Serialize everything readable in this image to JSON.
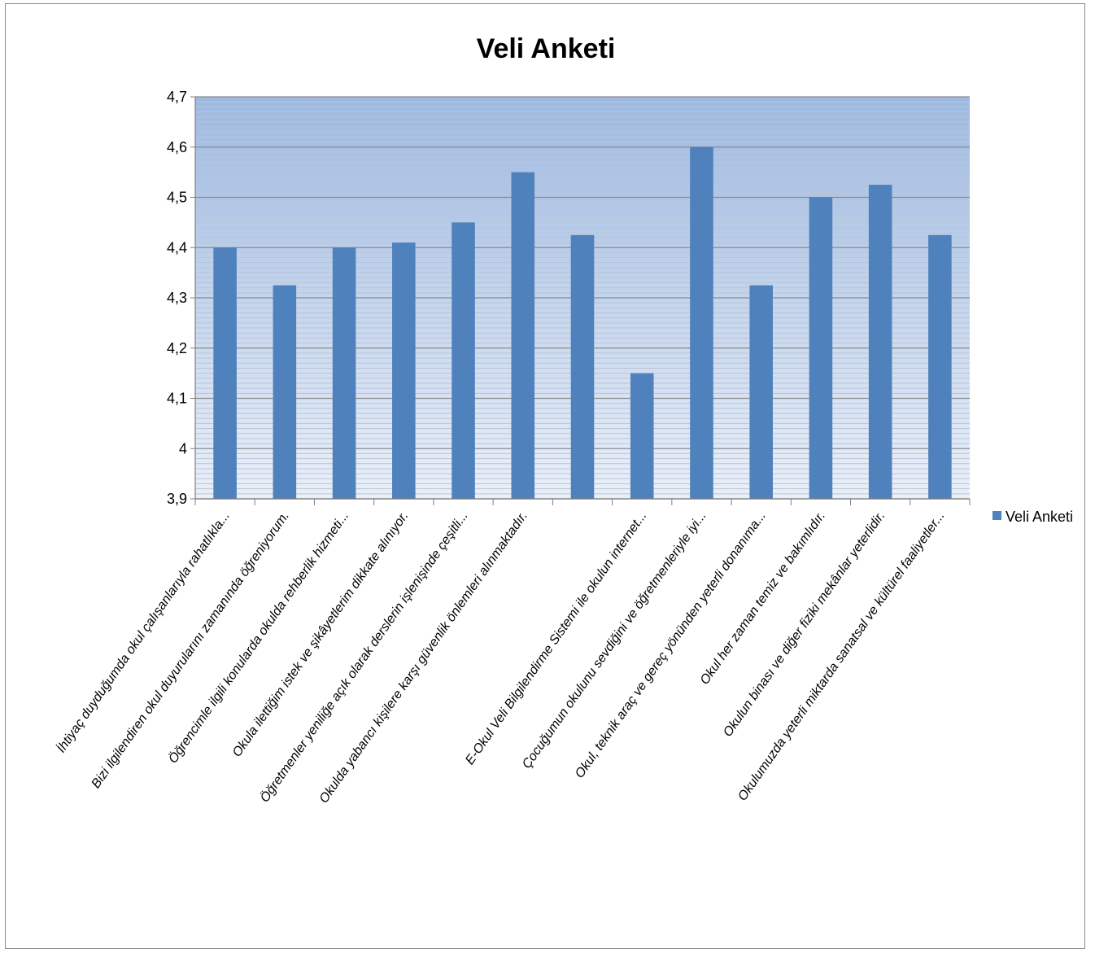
{
  "chart_data": {
    "type": "bar",
    "title": "Veli Anketi",
    "xlabel": "",
    "ylabel": "",
    "ylim": [
      3.9,
      4.7
    ],
    "yticks": [
      3.9,
      4.0,
      4.1,
      4.2,
      4.3,
      4.4,
      4.5,
      4.6,
      4.7
    ],
    "ytick_labels": [
      "3,9",
      "4",
      "4,1",
      "4,2",
      "4,3",
      "4,4",
      "4,5",
      "4,6",
      "4,7"
    ],
    "grid": true,
    "legend_position": "right",
    "colors": {
      "bar": "#4f81bd",
      "plot_bg_top": "#9db9e2",
      "plot_bg_bottom": "#eaf0f9",
      "major_grid": "#8a8a8a",
      "minor_grid": "#b9c5d6"
    },
    "categories": [
      "İhtiyaç duyduğumda okul çalışanlarıyla rahatlıkla...",
      "Bizi ilgilendiren okul duyurularını zamanında öğreniyorum.",
      "Öğrencimle ilgili konularda okulda rehberlik hizmeti...",
      "Okula ilettiğim istek ve şikâyetlerim dikkate alınıyor.",
      "Öğretmenler yeniliğe açık olarak derslerin işlenişinde çeşitli...",
      "Okulda yabancı kişilere karşı güvenlik önlemleri alınmaktadır.",
      "",
      "E-Okul Veli Bilgilendirme Sistemi ile okulun internet...",
      "Çocuğumun okulunu sevdiğini ve öğretmenleriyle iyi...",
      "Okul, teknik araç ve gereç yönünden yeterli donanıma...",
      "Okul her zaman temiz ve bakımlıdır.",
      "Okulun binası ve diğer fiziki mekânlar yeterlidir.",
      "Okulumuzda yeterli miktarda sanatsal ve kültürel faaliyetler..."
    ],
    "series": [
      {
        "name": "Veli Anketi",
        "values": [
          4.4,
          4.325,
          4.4,
          4.41,
          4.45,
          4.55,
          4.425,
          4.15,
          4.6,
          4.325,
          4.5,
          4.525,
          4.425
        ]
      }
    ]
  }
}
